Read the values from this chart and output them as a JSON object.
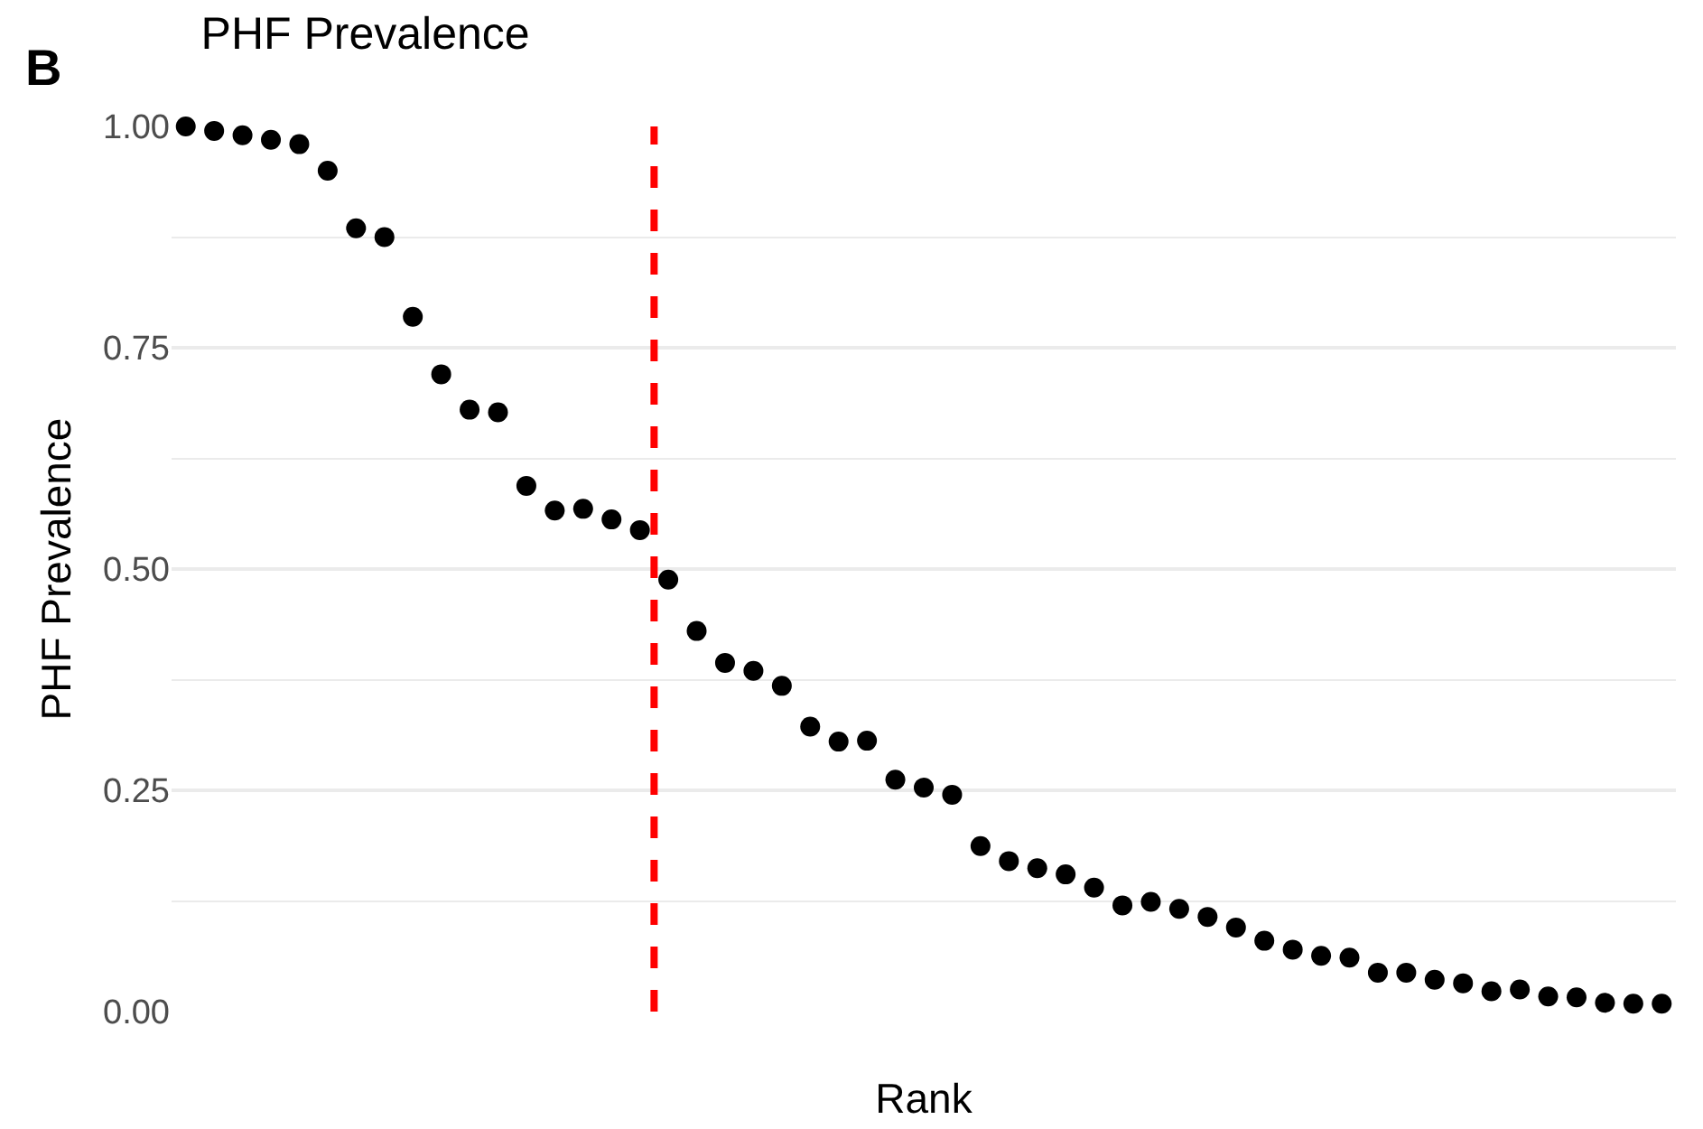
{
  "chart_data": {
    "type": "scatter",
    "title": "PHF Prevalence",
    "xlabel": "Rank",
    "ylabel": "PHF Prevalence",
    "annotations": [
      "B"
    ],
    "categories": [
      null,
      null,
      null,
      null,
      null,
      null,
      null,
      null,
      null,
      null,
      null,
      null,
      null,
      null,
      null,
      null,
      null,
      null,
      null,
      null,
      null,
      null,
      null,
      null,
      null,
      null,
      null,
      null,
      null,
      null,
      null,
      null,
      null,
      null,
      null,
      null,
      null,
      null,
      null,
      null,
      null,
      null,
      null,
      null,
      null,
      null,
      null,
      null,
      null,
      null,
      null,
      null,
      null
    ],
    "values": [
      1.0,
      0.995,
      0.99,
      0.985,
      0.98,
      0.95,
      0.885,
      0.875,
      0.785,
      0.72,
      0.68,
      0.677,
      0.594,
      0.566,
      0.568,
      0.556,
      0.544,
      0.488,
      0.43,
      0.394,
      0.385,
      0.368,
      0.322,
      0.305,
      0.306,
      0.262,
      0.253,
      0.245,
      0.187,
      0.17,
      0.162,
      0.155,
      0.14,
      0.12,
      0.124,
      0.116,
      0.107,
      0.095,
      0.08,
      0.07,
      0.063,
      0.061,
      0.044,
      0.044,
      0.036,
      0.032,
      0.023,
      0.025,
      0.017,
      0.016,
      0.01,
      0.009,
      0.009
    ],
    "color": "#000000",
    "marker": "circle",
    "grid": "y",
    "tick_labels": "y",
    "ylim": [
      0,
      1
    ],
    "yticks": [
      {
        "value": 0,
        "label": "0.00"
      },
      {
        "value": 0.125,
        "label": null
      },
      {
        "value": 0.25,
        "label": "0.25"
      },
      {
        "value": 0.375,
        "label": null
      },
      {
        "value": 0.5,
        "label": "0.50"
      },
      {
        "value": 0.625,
        "label": null
      },
      {
        "value": 0.75,
        "label": "0.75"
      },
      {
        "value": 0.875,
        "label": null
      },
      {
        "value": 1,
        "label": "1.00"
      }
    ]
  }
}
